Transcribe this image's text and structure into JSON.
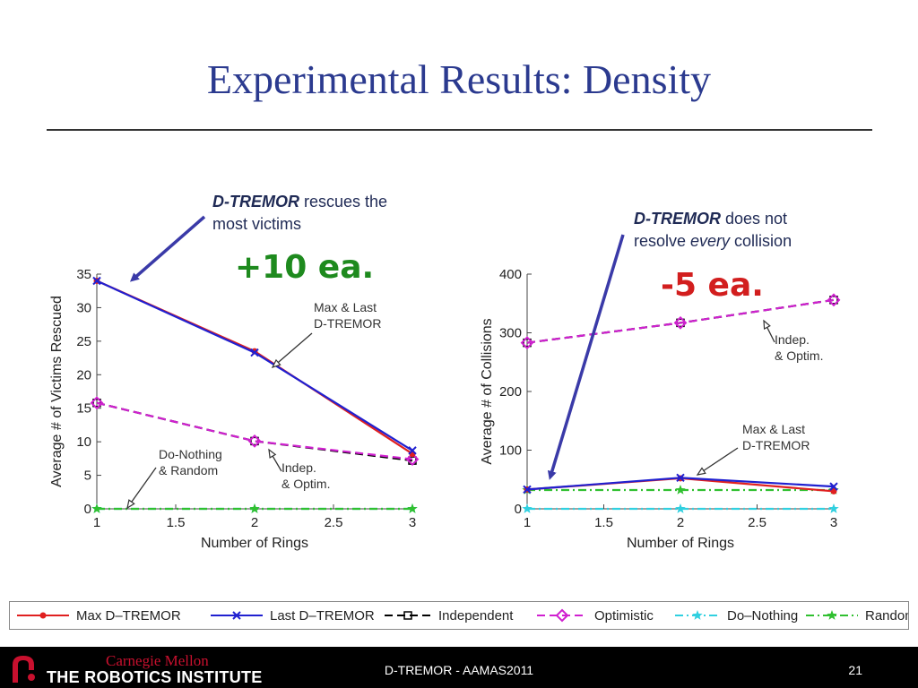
{
  "slide": {
    "title": "Experimental Results: Density",
    "footer_center": "D-TREMOR - AAMAS2011",
    "page_number": "21",
    "logo_top": "Carnegie Mellon",
    "logo_bottom": "THE ROBOTICS INSTITUTE"
  },
  "annotations": {
    "left": {
      "strong": "D-TREMOR",
      "rest1": " rescues the",
      "line2": "most victims",
      "big": "+10 ea.",
      "big_color": "#1e8a1e"
    },
    "right": {
      "strong": "D-TREMOR",
      "rest1": " does not",
      "line2a": "resolve ",
      "line2em": "every",
      "line2b": " collision",
      "big": "-5 ea.",
      "big_color": "#d21e1e"
    }
  },
  "chart_data": [
    {
      "type": "line",
      "xlabel": "Number of Rings",
      "ylabel": "Average # of Victims Rescued",
      "x": [
        1,
        2,
        3
      ],
      "xlim": [
        1,
        3
      ],
      "ylim": [
        0,
        35
      ],
      "xticks": [
        "1",
        "1.5",
        "2",
        "2.5",
        "3"
      ],
      "yticks": [
        "0",
        "5",
        "10",
        "15",
        "20",
        "25",
        "30",
        "35"
      ],
      "series": [
        {
          "name": "Max D–TREMOR",
          "values": [
            34,
            23.5,
            8.2
          ],
          "color": "#e02020",
          "dash": "solid",
          "marker": "dot"
        },
        {
          "name": "Last D–TREMOR",
          "values": [
            34,
            23.3,
            8.7
          ],
          "color": "#2020d0",
          "dash": "solid",
          "marker": "x"
        },
        {
          "name": "Independent",
          "values": [
            15.8,
            10.1,
            7.2
          ],
          "color": "#000000",
          "dash": "dashed",
          "marker": "square"
        },
        {
          "name": "Optimistic",
          "values": [
            15.8,
            10.1,
            7.4
          ],
          "color": "#d020d0",
          "dash": "dashed",
          "marker": "diamond"
        },
        {
          "name": "Do–Nothing",
          "values": [
            0,
            0,
            0
          ],
          "color": "#30d0e0",
          "dash": "dashdot",
          "marker": "star"
        },
        {
          "name": "Random",
          "values": [
            0,
            0,
            0
          ],
          "color": "#30c030",
          "dash": "dashdot",
          "marker": "star"
        }
      ],
      "callouts": [
        {
          "lines": [
            "Max & Last",
            "D-TREMOR"
          ]
        },
        {
          "lines": [
            "Do-Nothing",
            "& Random"
          ]
        },
        {
          "lines": [
            "Indep.",
            "& Optim."
          ]
        }
      ]
    },
    {
      "type": "line",
      "xlabel": "Number of Rings",
      "ylabel": "Average # of Collisions",
      "x": [
        1,
        2,
        3
      ],
      "xlim": [
        1,
        3
      ],
      "ylim": [
        0,
        400
      ],
      "xticks": [
        "1",
        "1.5",
        "2",
        "2.5",
        "3"
      ],
      "yticks": [
        "0",
        "100",
        "200",
        "300",
        "400"
      ],
      "series": [
        {
          "name": "Max D–TREMOR",
          "values": [
            33,
            52,
            30
          ],
          "color": "#e02020",
          "dash": "solid",
          "marker": "dot"
        },
        {
          "name": "Last D–TREMOR",
          "values": [
            33,
            53,
            38
          ],
          "color": "#2020d0",
          "dash": "solid",
          "marker": "x"
        },
        {
          "name": "Independent",
          "values": [
            283,
            317,
            356
          ],
          "color": "#000000",
          "dash": "dashed",
          "marker": "square"
        },
        {
          "name": "Optimistic",
          "values": [
            283,
            317,
            356
          ],
          "color": "#d020d0",
          "dash": "dashed",
          "marker": "diamond"
        },
        {
          "name": "Do–Nothing",
          "values": [
            0,
            0,
            0
          ],
          "color": "#30d0e0",
          "dash": "dashdot",
          "marker": "star"
        },
        {
          "name": "Random",
          "values": [
            32,
            32,
            32
          ],
          "color": "#30c030",
          "dash": "dashdot",
          "marker": "star"
        }
      ],
      "callouts": [
        {
          "lines": [
            "Indep.",
            "& Optim."
          ]
        },
        {
          "lines": [
            "Max & Last",
            "D-TREMOR"
          ]
        }
      ]
    }
  ],
  "legend": {
    "items": [
      "Max D–TREMOR",
      "Last D–TREMOR",
      "Independent",
      "Optimistic",
      "Do–Nothing",
      "Random"
    ]
  }
}
